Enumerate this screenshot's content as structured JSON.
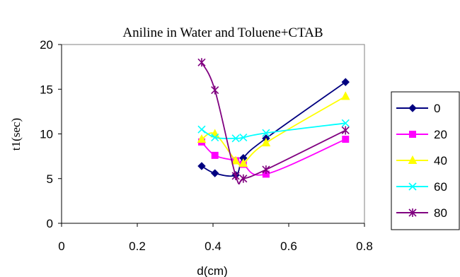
{
  "chart_data": {
    "type": "line",
    "title": "Aniline in Water and Toluene+CTAB",
    "xlabel": "d(cm)",
    "ylabel": "t1(sec)",
    "xlim": [
      0,
      0.8
    ],
    "ylim": [
      0,
      20
    ],
    "xticks": [
      "0",
      "0.2",
      "0.4",
      "0.6",
      "0.8"
    ],
    "yticks": [
      "0",
      "5",
      "10",
      "15",
      "20"
    ],
    "grid": false,
    "legend": "right",
    "series": [
      {
        "name": "0",
        "color": "#000080",
        "marker": "diamond",
        "x": [
          0.37,
          0.405,
          0.46,
          0.48,
          0.54,
          0.75
        ],
        "y": [
          6.4,
          5.6,
          5.4,
          7.3,
          9.5,
          15.8
        ]
      },
      {
        "name": "20",
        "color": "#FF00FF",
        "marker": "square",
        "x": [
          0.37,
          0.405,
          0.46,
          0.48,
          0.54,
          0.75
        ],
        "y": [
          9.1,
          7.6,
          7.0,
          6.6,
          5.5,
          9.4
        ]
      },
      {
        "name": "40",
        "color": "#FFFF00",
        "marker": "triangle",
        "x": [
          0.37,
          0.405,
          0.46,
          0.48,
          0.54,
          0.75
        ],
        "y": [
          9.4,
          10.0,
          7.0,
          6.7,
          9.0,
          14.2
        ]
      },
      {
        "name": "60",
        "color": "#00FFFF",
        "marker": "x",
        "x": [
          0.37,
          0.405,
          0.46,
          0.48,
          0.54,
          0.75
        ],
        "y": [
          10.5,
          9.6,
          9.5,
          9.6,
          10.1,
          11.2
        ]
      },
      {
        "name": "80",
        "color": "#800080",
        "marker": "star",
        "x": [
          0.37,
          0.405,
          0.46,
          0.48,
          0.54,
          0.75
        ],
        "y": [
          18.0,
          14.9,
          5.3,
          5.0,
          6.0,
          10.4
        ]
      }
    ]
  }
}
